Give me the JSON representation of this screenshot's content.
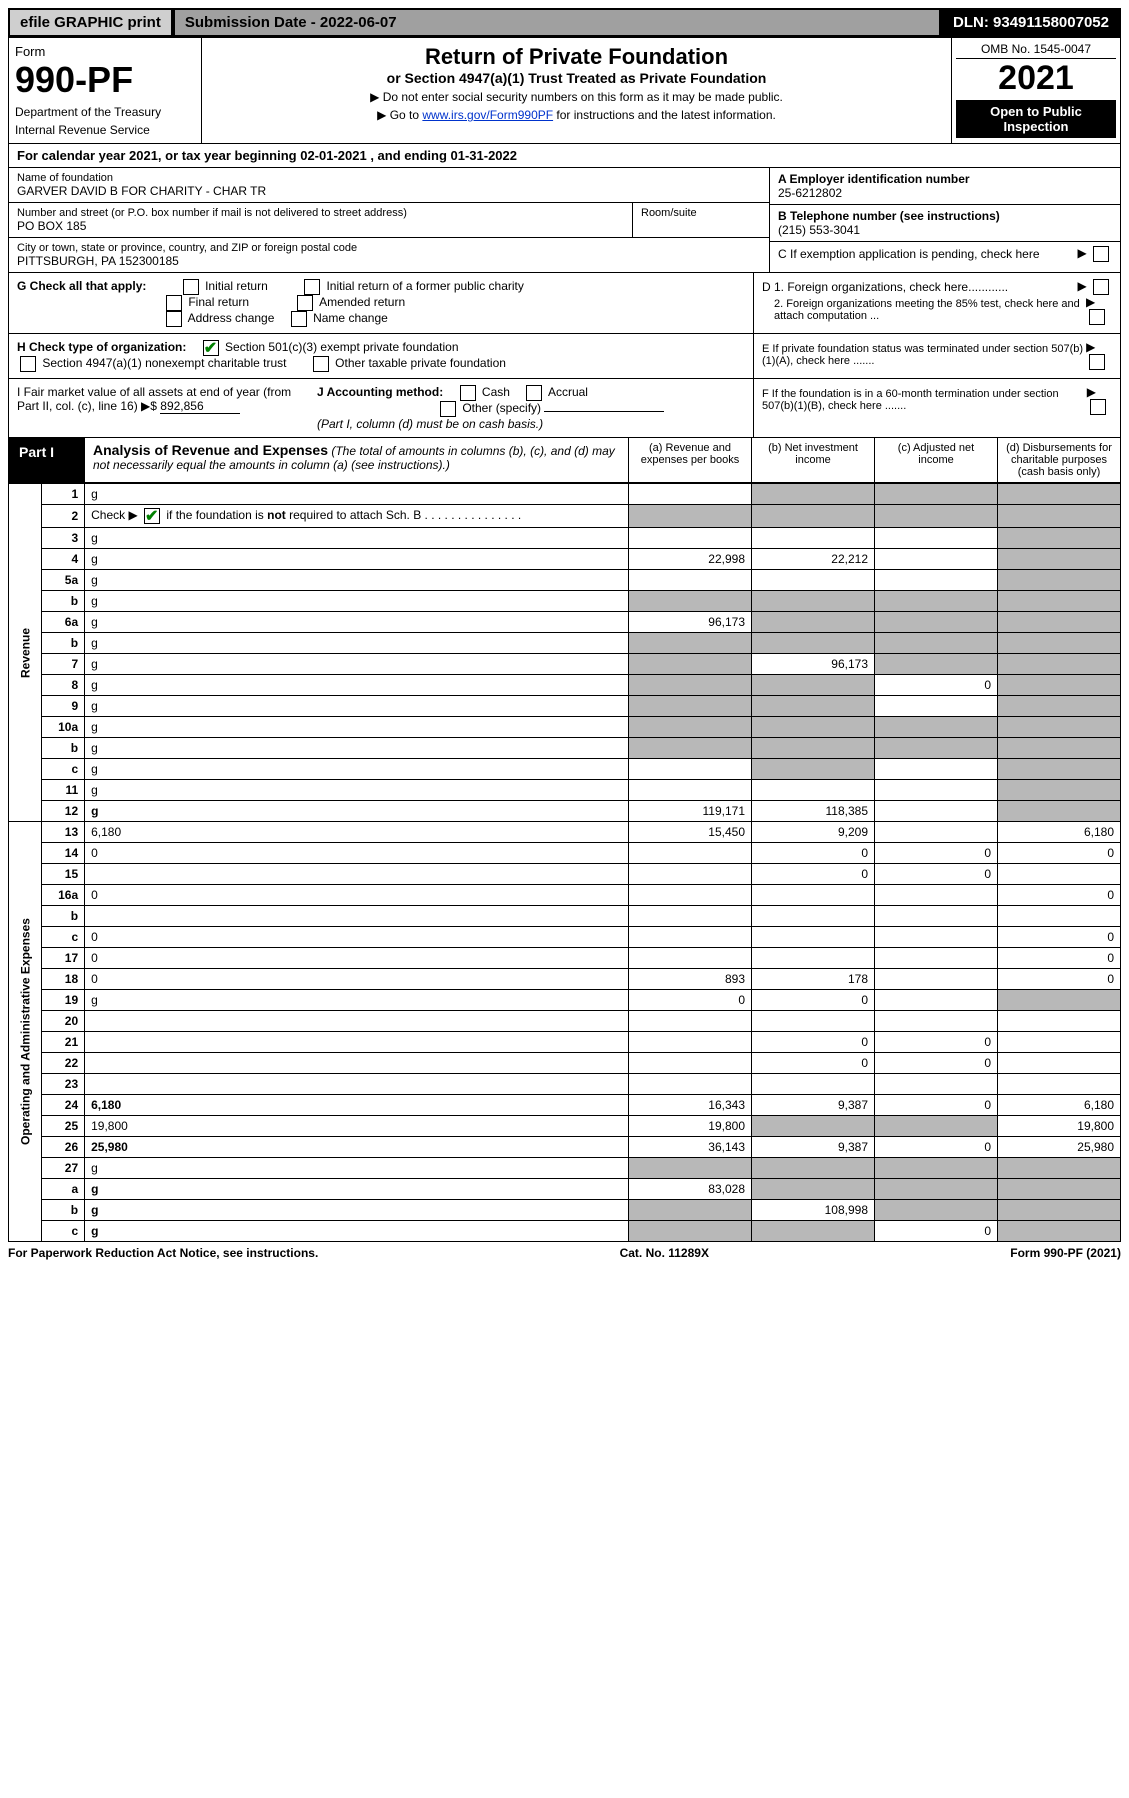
{
  "topbar": {
    "efile_label": "efile GRAPHIC print",
    "submission_label": "Submission Date - 2022-06-07",
    "dln_label": "DLN: 93491158007052"
  },
  "header": {
    "form_word": "Form",
    "form_number": "990-PF",
    "dept": "Department of the Treasury",
    "irs": "Internal Revenue Service",
    "title": "Return of Private Foundation",
    "subtitle": "or Section 4947(a)(1) Trust Treated as Private Foundation",
    "note1": "▶ Do not enter social security numbers on this form as it may be made public.",
    "note2_pre": "▶ Go to ",
    "note2_link": "www.irs.gov/Form990PF",
    "note2_post": " for instructions and the latest information.",
    "omb": "OMB No. 1545-0047",
    "year": "2021",
    "open_public": "Open to Public Inspection"
  },
  "cal_year": "For calendar year 2021, or tax year beginning 02-01-2021            , and ending 01-31-2022",
  "foundation": {
    "name_label": "Name of foundation",
    "name": "GARVER DAVID B FOR CHARITY - CHAR TR",
    "addr_label": "Number and street (or P.O. box number if mail is not delivered to street address)",
    "addr": "PO BOX 185",
    "room_label": "Room/suite",
    "city_label": "City or town, state or province, country, and ZIP or foreign postal code",
    "city": "PITTSBURGH, PA  152300185"
  },
  "right_info": {
    "a_label": "A Employer identification number",
    "a_val": "25-6212802",
    "b_label": "B Telephone number (see instructions)",
    "b_val": "(215) 553-3041",
    "c_label": "C If exemption application is pending, check here",
    "d1_label": "D 1. Foreign organizations, check here............",
    "d2_label": "2. Foreign organizations meeting the 85% test, check here and attach computation ...",
    "e_label": "E  If private foundation status was terminated under section 507(b)(1)(A), check here .......",
    "f_label": "F  If the foundation is in a 60-month termination under section 507(b)(1)(B), check here .......",
    "arrow": "▶"
  },
  "g": {
    "label": "G Check all that apply:",
    "initial": "Initial return",
    "initial_former": "Initial return of a former public charity",
    "final": "Final return",
    "amended": "Amended return",
    "addr_change": "Address change",
    "name_change": "Name change"
  },
  "h": {
    "label": "H Check type of organization:",
    "c3": "Section 501(c)(3) exempt private foundation",
    "4947": "Section 4947(a)(1) nonexempt charitable trust",
    "other_tax": "Other taxable private foundation"
  },
  "i": {
    "label": "I Fair market value of all assets at end of year (from Part II, col. (c), line 16) ▶$ ",
    "value": "892,856"
  },
  "j": {
    "label": "J Accounting method:",
    "cash": "Cash",
    "accrual": "Accrual",
    "other": "Other (specify)",
    "note": "(Part I, column (d) must be on cash basis.)"
  },
  "part1": {
    "label": "Part I",
    "title": "Analysis of Revenue and Expenses",
    "note": " (The total of amounts in columns (b), (c), and (d) may not necessarily equal the amounts in column (a) (see instructions).)",
    "col_a": "(a)   Revenue and expenses per books",
    "col_b": "(b)   Net investment income",
    "col_c": "(c)   Adjusted net income",
    "col_d": "(d)   Disbursements for charitable purposes (cash basis only)"
  },
  "side_labels": {
    "revenue": "Revenue",
    "expenses": "Operating and Administrative Expenses"
  },
  "rows": [
    {
      "n": "1",
      "d": "g",
      "a": "",
      "b": "g",
      "c": "g"
    },
    {
      "n": "2",
      "d": "g",
      "a": "g",
      "b": "g",
      "c": "g",
      "check": true
    },
    {
      "n": "3",
      "d": "g",
      "a": "",
      "b": "",
      "c": ""
    },
    {
      "n": "4",
      "d": "g",
      "a": "22,998",
      "b": "22,212",
      "c": ""
    },
    {
      "n": "5a",
      "d": "g",
      "a": "",
      "b": "",
      "c": ""
    },
    {
      "n": "b",
      "d": "g",
      "a": "g",
      "b": "g",
      "c": "g"
    },
    {
      "n": "6a",
      "d": "g",
      "a": "96,173",
      "b": "g",
      "c": "g"
    },
    {
      "n": "b",
      "d": "g",
      "a": "g",
      "b": "g",
      "c": "g"
    },
    {
      "n": "7",
      "d": "g",
      "a": "g",
      "b": "96,173",
      "c": "g"
    },
    {
      "n": "8",
      "d": "g",
      "a": "g",
      "b": "g",
      "c": "0"
    },
    {
      "n": "9",
      "d": "g",
      "a": "g",
      "b": "g",
      "c": ""
    },
    {
      "n": "10a",
      "d": "g",
      "a": "g",
      "b": "g",
      "c": "g"
    },
    {
      "n": "b",
      "d": "g",
      "a": "g",
      "b": "g",
      "c": "g"
    },
    {
      "n": "c",
      "d": "g",
      "a": "",
      "b": "g",
      "c": ""
    },
    {
      "n": "11",
      "d": "g",
      "a": "",
      "b": "",
      "c": ""
    },
    {
      "n": "12",
      "d": "g",
      "a": "119,171",
      "b": "118,385",
      "c": "",
      "bold": true
    },
    {
      "n": "13",
      "d": "6,180",
      "a": "15,450",
      "b": "9,209",
      "c": ""
    },
    {
      "n": "14",
      "d": "0",
      "a": "",
      "b": "0",
      "c": "0"
    },
    {
      "n": "15",
      "d": "",
      "a": "",
      "b": "0",
      "c": "0"
    },
    {
      "n": "16a",
      "d": "0",
      "a": "",
      "b": "",
      "c": ""
    },
    {
      "n": "b",
      "d": "",
      "a": "",
      "b": "",
      "c": ""
    },
    {
      "n": "c",
      "d": "0",
      "a": "",
      "b": "",
      "c": ""
    },
    {
      "n": "17",
      "d": "0",
      "a": "",
      "b": "",
      "c": ""
    },
    {
      "n": "18",
      "d": "0",
      "a": "893",
      "b": "178",
      "c": ""
    },
    {
      "n": "19",
      "d": "g",
      "a": "0",
      "b": "0",
      "c": ""
    },
    {
      "n": "20",
      "d": "",
      "a": "",
      "b": "",
      "c": ""
    },
    {
      "n": "21",
      "d": "",
      "a": "",
      "b": "0",
      "c": "0"
    },
    {
      "n": "22",
      "d": "",
      "a": "",
      "b": "0",
      "c": "0"
    },
    {
      "n": "23",
      "d": "",
      "a": "",
      "b": "",
      "c": ""
    },
    {
      "n": "24",
      "d": "6,180",
      "a": "16,343",
      "b": "9,387",
      "c": "0",
      "bold": true
    },
    {
      "n": "25",
      "d": "19,800",
      "a": "19,800",
      "b": "g",
      "c": "g"
    },
    {
      "n": "26",
      "d": "25,980",
      "a": "36,143",
      "b": "9,387",
      "c": "0",
      "bold": true
    },
    {
      "n": "27",
      "d": "g",
      "a": "g",
      "b": "g",
      "c": "g"
    },
    {
      "n": "a",
      "d": "g",
      "a": "83,028",
      "b": "g",
      "c": "g",
      "bold": true
    },
    {
      "n": "b",
      "d": "g",
      "a": "g",
      "b": "108,998",
      "c": "g",
      "bold": true
    },
    {
      "n": "c",
      "d": "g",
      "a": "g",
      "b": "g",
      "c": "0",
      "bold": true
    }
  ],
  "footer": {
    "left": "For Paperwork Reduction Act Notice, see instructions.",
    "mid": "Cat. No. 11289X",
    "right": "Form 990-PF (2021)"
  },
  "colors": {
    "grey_cell": "#b8b8b8",
    "link": "#0033cc",
    "check": "#008000"
  }
}
